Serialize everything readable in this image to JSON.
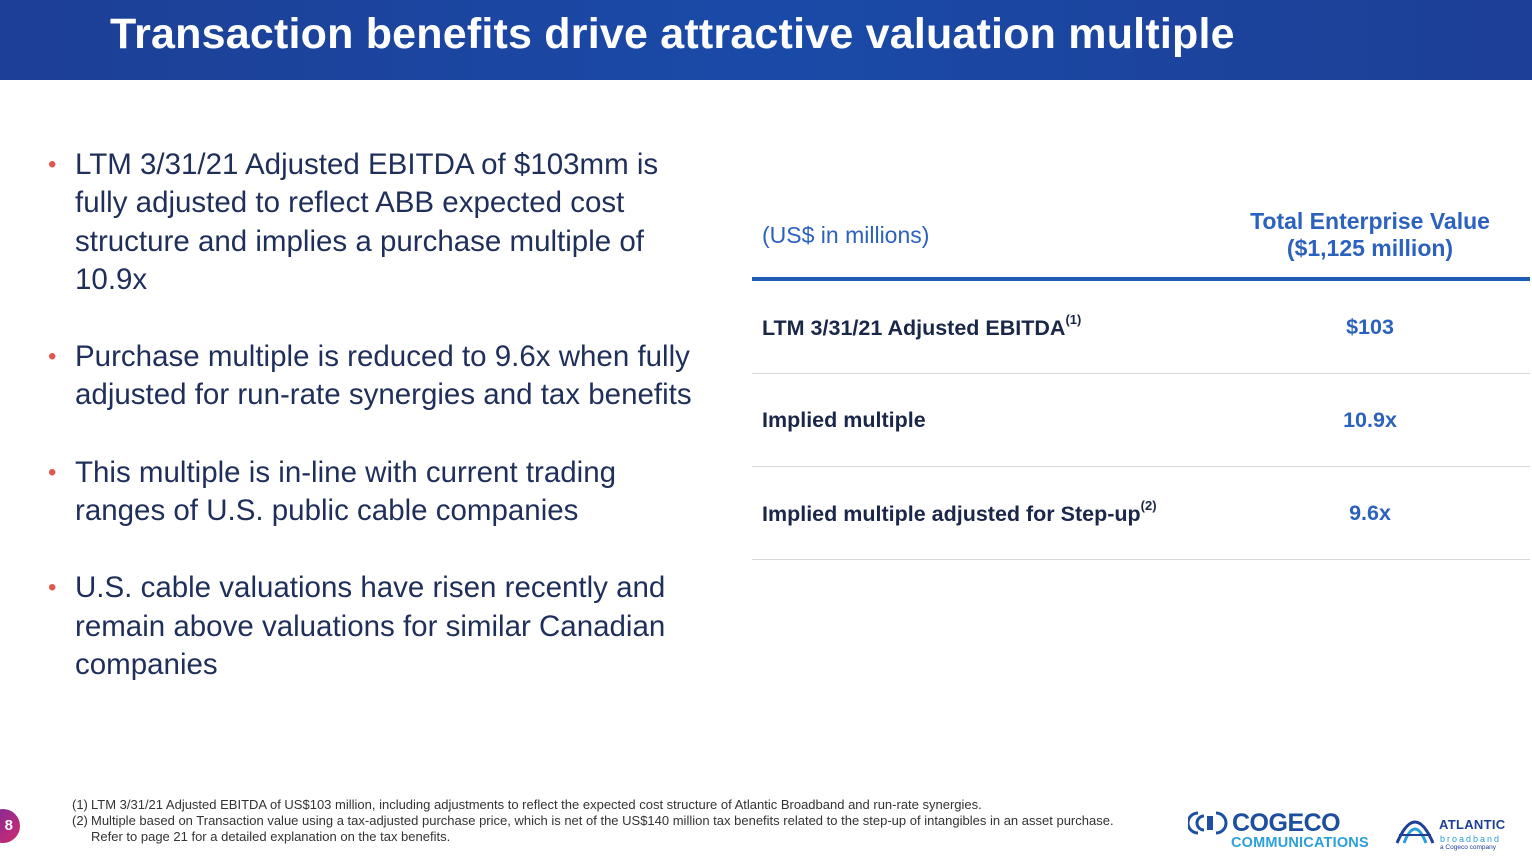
{
  "slide": {
    "title": "Transaction benefits drive attractive valuation multiple",
    "page_number": "8"
  },
  "bullets": [
    "LTM 3/31/21 Adjusted EBITDA of $103mm is fully adjusted to reflect ABB expected cost structure and implies a purchase multiple of 10.9x",
    "Purchase multiple is reduced to 9.6x when fully adjusted for run-rate synergies and tax benefits",
    "This multiple is in-line with current trading ranges of U.S. public cable companies",
    "U.S. cable valuations have risen recently and remain above valuations for similar Canadian companies"
  ],
  "bullet_marker": "•",
  "table": {
    "units_label": "(US$ in millions)",
    "column_header_line1": "Total Enterprise Value",
    "column_header_line2": "($1,125 million)",
    "rows": [
      {
        "label": "LTM 3/31/21 Adjusted EBITDA",
        "sup": "(1)",
        "value": "$103"
      },
      {
        "label": "Implied multiple",
        "sup": "",
        "value": "10.9x"
      },
      {
        "label": "Implied multiple adjusted for Step-up",
        "sup": "(2)",
        "value": "9.6x"
      }
    ]
  },
  "footnotes": [
    {
      "num": "(1)",
      "text": "LTM 3/31/21 Adjusted EBITDA of US$103 million, including adjustments to reflect the expected cost structure of Atlantic Broadband and run-rate synergies."
    },
    {
      "num": "(2)",
      "text": "Multiple based on Transaction value using a tax-adjusted purchase price, which is net of the US$140 million tax benefits related to the step-up of intangibles in an asset purchase. Refer to page 21 for a detailed explanation on the tax benefits."
    }
  ],
  "logos": {
    "cogeco_name": "COGECO",
    "cogeco_sub": "COMMUNICATIONS",
    "atlantic_name": "ATLANTIC",
    "atlantic_sub": "broadband",
    "atlantic_sub2": "a Cogeco company"
  },
  "colors": {
    "header_blue": "#1d3f95",
    "accent_blue": "#2c62bd",
    "bullet_red": "#e0574f",
    "text_navy": "#1f2f5a"
  }
}
